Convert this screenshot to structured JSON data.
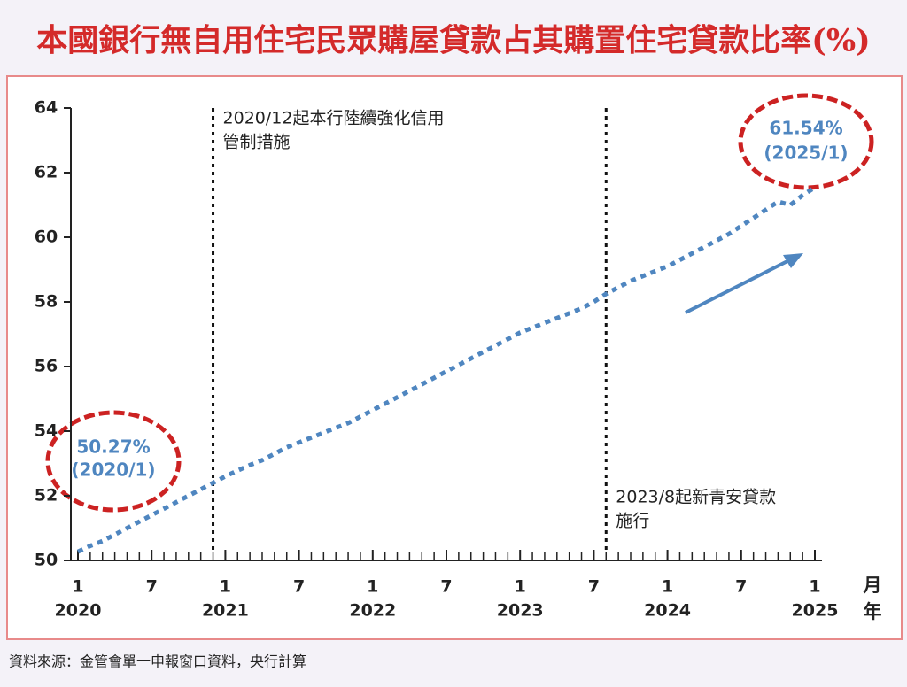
{
  "chart_data": {
    "type": "line",
    "title": "本國銀行無自用住宅民眾購屋貸款占其購置住宅貸款比率(%)",
    "source": "資料來源：金管會單一申報窗口資料，央行計算",
    "x_unit_month": "月",
    "x_unit_year": "年",
    "x": [
      "2020-01",
      "2020-02",
      "2020-03",
      "2020-04",
      "2020-05",
      "2020-06",
      "2020-07",
      "2020-08",
      "2020-09",
      "2020-10",
      "2020-11",
      "2020-12",
      "2021-01",
      "2021-02",
      "2021-03",
      "2021-04",
      "2021-05",
      "2021-06",
      "2021-07",
      "2021-08",
      "2021-09",
      "2021-10",
      "2021-11",
      "2021-12",
      "2022-01",
      "2022-02",
      "2022-03",
      "2022-04",
      "2022-05",
      "2022-06",
      "2022-07",
      "2022-08",
      "2022-09",
      "2022-10",
      "2022-11",
      "2022-12",
      "2023-01",
      "2023-02",
      "2023-03",
      "2023-04",
      "2023-05",
      "2023-06",
      "2023-07",
      "2023-08",
      "2023-09",
      "2023-10",
      "2023-11",
      "2023-12",
      "2024-01",
      "2024-02",
      "2024-03",
      "2024-04",
      "2024-05",
      "2024-06",
      "2024-07",
      "2024-08",
      "2024-09",
      "2024-10",
      "2024-11",
      "2024-12",
      "2025-01"
    ],
    "series": [
      {
        "name": "比率",
        "color": "#4f86c0",
        "values": [
          50.27,
          50.45,
          50.6,
          50.8,
          51.0,
          51.2,
          51.4,
          51.6,
          51.8,
          52.0,
          52.2,
          52.4,
          52.6,
          52.78,
          52.95,
          53.1,
          53.3,
          53.5,
          53.65,
          53.8,
          53.95,
          54.1,
          54.25,
          54.45,
          54.65,
          54.85,
          55.05,
          55.25,
          55.45,
          55.65,
          55.85,
          56.05,
          56.25,
          56.45,
          56.65,
          56.85,
          57.05,
          57.2,
          57.35,
          57.5,
          57.65,
          57.8,
          58.0,
          58.25,
          58.45,
          58.65,
          58.8,
          58.95,
          59.1,
          59.3,
          59.5,
          59.7,
          59.9,
          60.1,
          60.35,
          60.6,
          60.85,
          61.1,
          61.0,
          61.3,
          61.54
        ]
      }
    ],
    "xlim": [
      "2020-01",
      "2025-01"
    ],
    "xticks": [
      {
        "value": "2020-01",
        "label": "1"
      },
      {
        "value": "2020-07",
        "label": "7"
      },
      {
        "value": "2021-01",
        "label": "1"
      },
      {
        "value": "2021-07",
        "label": "7"
      },
      {
        "value": "2022-01",
        "label": "1"
      },
      {
        "value": "2022-07",
        "label": "7"
      },
      {
        "value": "2023-01",
        "label": "1"
      },
      {
        "value": "2023-07",
        "label": "7"
      },
      {
        "value": "2024-01",
        "label": "1"
      },
      {
        "value": "2024-07",
        "label": "7"
      },
      {
        "value": "2025-01",
        "label": "1"
      }
    ],
    "xyears": [
      {
        "value": "2020-01",
        "label": "2020"
      },
      {
        "value": "2021-01",
        "label": "2021"
      },
      {
        "value": "2022-01",
        "label": "2022"
      },
      {
        "value": "2023-01",
        "label": "2023"
      },
      {
        "value": "2024-01",
        "label": "2024"
      },
      {
        "value": "2025-01",
        "label": "2025"
      }
    ],
    "ylim": [
      50,
      64
    ],
    "yticks": [
      50,
      52,
      54,
      56,
      58,
      60,
      62,
      64
    ],
    "markers": [
      {
        "x": "2020-12",
        "lines": [
          "2020/12起本行陸續強化信用",
          "管制措施"
        ]
      },
      {
        "x": "2023-08",
        "lines": [
          "2023/8起新青安貸款",
          "施行"
        ]
      }
    ],
    "callouts": [
      {
        "value": "50.27%",
        "date": "(2020/1)"
      },
      {
        "value": "61.54%",
        "date": "(2025/1)"
      }
    ]
  }
}
